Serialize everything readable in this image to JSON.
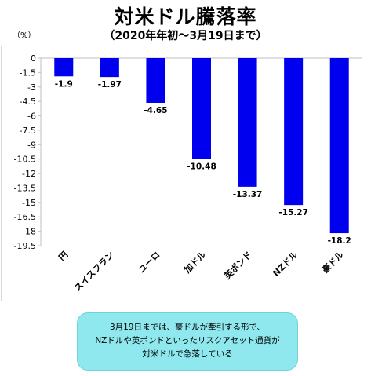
{
  "header": {
    "title": "対米ドル騰落率",
    "subtitle": "（2020年年初～3月19日まで）",
    "unit_label": "（%）"
  },
  "chart_data": {
    "type": "bar",
    "categories": [
      "円",
      "スイスフラン",
      "ユーロ",
      "加ドル",
      "英ポンド",
      "NZドル",
      "豪ドル"
    ],
    "values": [
      -1.9,
      -1.97,
      -4.65,
      -10.48,
      -13.37,
      -15.27,
      -18.2
    ],
    "value_labels": [
      "-1.9",
      "-1.97",
      "-4.65",
      "-10.48",
      "-13.37",
      "-15.27",
      "-18.2"
    ],
    "yticks": [
      "0",
      "-1.5",
      "-3",
      "-4.5",
      "-6",
      "-7.5",
      "-9",
      "-10.5",
      "-12",
      "-13.5",
      "-15",
      "-16.5",
      "-18",
      "-19.5"
    ],
    "ylim": [
      -19.5,
      0
    ],
    "grid": false,
    "bar_color": "#0000ee"
  },
  "callout": {
    "lines": [
      "3月19日までは、豪ドルが牽引する形で、",
      "NZドルや英ポンドといったリスクアセット通貨が",
      "対米ドルで急落している"
    ],
    "fill_color": "#8ee8ee"
  }
}
